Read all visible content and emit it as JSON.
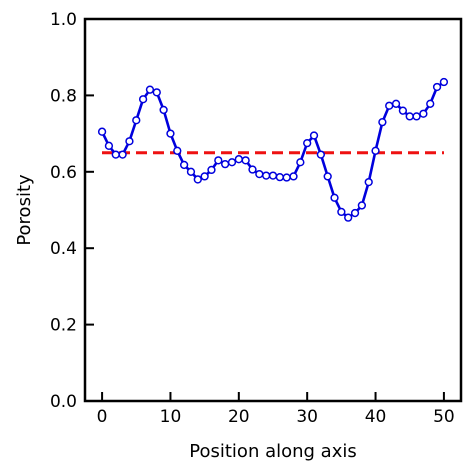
{
  "chart_data": {
    "type": "line",
    "title": "",
    "xlabel": "Position along axis",
    "ylabel": "Porosity",
    "xlim": [
      -2.5,
      52.5
    ],
    "ylim": [
      0.0,
      1.0
    ],
    "xticks": [
      0,
      10,
      20,
      30,
      40,
      50
    ],
    "yticks": [
      0.0,
      0.2,
      0.4,
      0.6,
      0.8,
      1.0
    ],
    "xtick_labels": [
      "0",
      "10",
      "20",
      "30",
      "40",
      "50"
    ],
    "ytick_labels": [
      "0.0",
      "0.2",
      "0.4",
      "0.6",
      "0.8",
      "1.0"
    ],
    "grid": false,
    "legend": "none",
    "series": [
      {
        "color": "#0000dd",
        "marker": "open-circle",
        "x": [
          0,
          1,
          2,
          3,
          4,
          5,
          6,
          7,
          8,
          9,
          10,
          11,
          12,
          13,
          14,
          15,
          16,
          17,
          18,
          19,
          20,
          21,
          22,
          23,
          24,
          25,
          26,
          27,
          28,
          29,
          30,
          31,
          32,
          33,
          34,
          35,
          36,
          37,
          38,
          39,
          40,
          41,
          42,
          43,
          44,
          45,
          46,
          47,
          48,
          49,
          50
        ],
        "y": [
          0.705,
          0.668,
          0.645,
          0.645,
          0.68,
          0.735,
          0.79,
          0.815,
          0.808,
          0.762,
          0.7,
          0.655,
          0.618,
          0.6,
          0.58,
          0.588,
          0.605,
          0.63,
          0.62,
          0.625,
          0.633,
          0.63,
          0.606,
          0.594,
          0.59,
          0.59,
          0.586,
          0.585,
          0.588,
          0.625,
          0.675,
          0.695,
          0.645,
          0.588,
          0.532,
          0.495,
          0.48,
          0.492,
          0.512,
          0.573,
          0.655,
          0.73,
          0.773,
          0.778,
          0.76,
          0.745,
          0.745,
          0.752,
          0.778,
          0.822,
          0.835
        ]
      }
    ],
    "reference_lines": [
      {
        "y": 0.65,
        "color": "#ee1111",
        "style": "dashed"
      }
    ]
  }
}
